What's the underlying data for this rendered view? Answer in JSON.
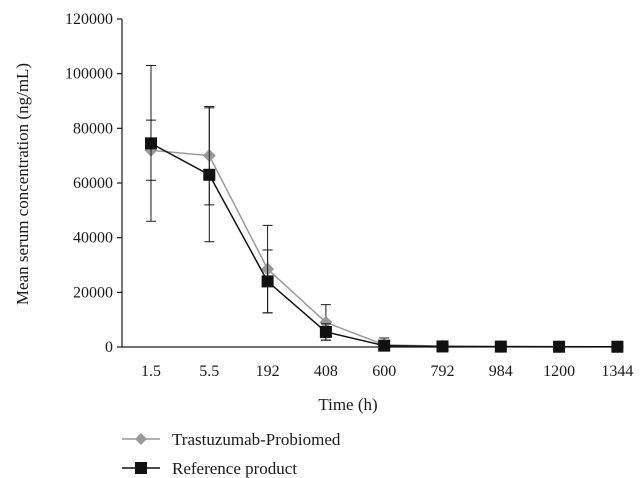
{
  "chart_data": {
    "type": "line",
    "title": "",
    "xlabel": "Time (h)",
    "ylabel": "Mean serum concentration (ng/mL)",
    "categories": [
      "1.5",
      "5.5",
      "192",
      "408",
      "600",
      "792",
      "984",
      "1200",
      "1344"
    ],
    "ylim": [
      0,
      120000
    ],
    "yticks": [
      "0",
      "20000",
      "40000",
      "60000",
      "80000",
      "100000",
      "120000"
    ],
    "grid": false,
    "legend_position": "bottom-left",
    "series": [
      {
        "name": "Trastuzumab-Probiomed",
        "color": "#999999",
        "marker": "diamond",
        "values": [
          72000,
          70000,
          28500,
          9000,
          800,
          300,
          200,
          150,
          100
        ],
        "error": [
          11000,
          18000,
          16000,
          6500,
          2500,
          0,
          0,
          0,
          0
        ]
      },
      {
        "name": "Reference product",
        "color": "#111111",
        "marker": "square",
        "values": [
          74500,
          63000,
          24000,
          5500,
          500,
          200,
          150,
          100,
          100
        ],
        "error": [
          28500,
          24500,
          11500,
          3000,
          1500,
          0,
          0,
          0,
          0
        ]
      }
    ]
  }
}
